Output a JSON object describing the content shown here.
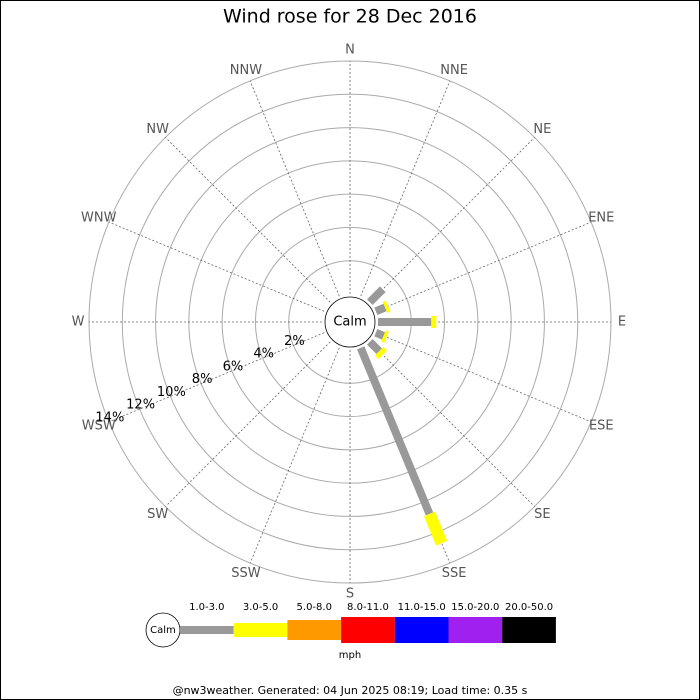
{
  "chart_data": {
    "type": "wind-rose",
    "title": "Wind rose for 28 Dec 2016",
    "directions": [
      "N",
      "NNE",
      "NE",
      "ENE",
      "E",
      "ESE",
      "SE",
      "SSE",
      "S",
      "SSW",
      "SW",
      "WSW",
      "W",
      "WNW",
      "NW",
      "NNW"
    ],
    "calm_label": "Calm",
    "rlim": [
      0,
      14
    ],
    "rticks": [
      {
        "value": 2,
        "label": "2%"
      },
      {
        "value": 4,
        "label": "4%"
      },
      {
        "value": 6,
        "label": "6%"
      },
      {
        "value": 8,
        "label": "8%"
      },
      {
        "value": 10,
        "label": "10%"
      },
      {
        "value": 12,
        "label": "12%"
      },
      {
        "value": 14,
        "label": "14%"
      }
    ],
    "series": [
      {
        "name": "1.0-3.0",
        "color": "#999999",
        "values": [
          0,
          0,
          1.1,
          0.6,
          3.2,
          0.5,
          0.8,
          10.8,
          0,
          0,
          0,
          0,
          0,
          0,
          0,
          0
        ]
      },
      {
        "name": "3.0-5.0",
        "color": "#ffff00",
        "values": [
          0,
          0,
          0,
          0.2,
          0.3,
          0.2,
          0.3,
          1.9,
          0,
          0,
          0,
          0,
          0,
          0,
          0,
          0
        ]
      },
      {
        "name": "5.0-8.0",
        "color": "#ff9900",
        "values": [
          0,
          0,
          0,
          0,
          0,
          0,
          0,
          0,
          0,
          0,
          0,
          0,
          0,
          0,
          0,
          0
        ]
      },
      {
        "name": "8.0-11.0",
        "color": "#ff0000",
        "values": [
          0,
          0,
          0,
          0,
          0,
          0,
          0,
          0,
          0,
          0,
          0,
          0,
          0,
          0,
          0,
          0
        ]
      },
      {
        "name": "11.0-15.0",
        "color": "#0000ff",
        "values": [
          0,
          0,
          0,
          0,
          0,
          0,
          0,
          0,
          0,
          0,
          0,
          0,
          0,
          0,
          0,
          0
        ]
      },
      {
        "name": "15.0-20.0",
        "color": "#a020f0",
        "values": [
          0,
          0,
          0,
          0,
          0,
          0,
          0,
          0,
          0,
          0,
          0,
          0,
          0,
          0,
          0,
          0
        ]
      },
      {
        "name": "20.0-50.0",
        "color": "#000000",
        "values": [
          0,
          0,
          0,
          0,
          0,
          0,
          0,
          0,
          0,
          0,
          0,
          0,
          0,
          0,
          0,
          0
        ]
      }
    ],
    "legend_unit": "mph",
    "footer": "@nw3weather. Generated: 04 Jun 2025 08:19; Load time: 0.35 s"
  }
}
